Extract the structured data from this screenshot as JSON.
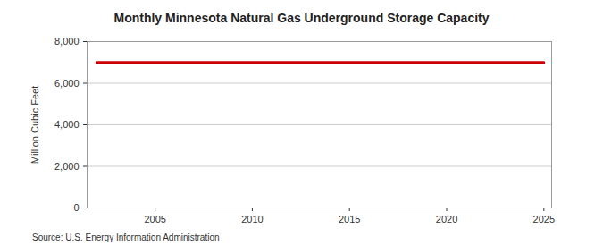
{
  "chart_data": {
    "type": "line",
    "title": "Monthly Minnesota Natural Gas Underground Storage Capacity",
    "y_label": "Million Cubic Feet",
    "source": "Source: U.S. Energy Information Administration",
    "x": [
      2002,
      2003,
      2004,
      2005,
      2006,
      2007,
      2008,
      2009,
      2010,
      2011,
      2012,
      2013,
      2014,
      2015,
      2016,
      2017,
      2018,
      2019,
      2020,
      2021,
      2022,
      2023,
      2024,
      2025
    ],
    "values": [
      7000,
      7000,
      7000,
      7000,
      7000,
      7000,
      7000,
      7000,
      7000,
      7000,
      7000,
      7000,
      7000,
      7000,
      7000,
      7000,
      7000,
      7000,
      7000,
      7000,
      7000,
      7000,
      7000,
      7000
    ],
    "color": "#cc0000",
    "xlim": [
      2001.5,
      2025.4
    ],
    "xticks": [
      2005,
      2010,
      2015,
      2020,
      2025
    ],
    "ylim": [
      0,
      8000
    ],
    "yticks": [
      0,
      {
        "value": 2000,
        "label": "2,000"
      },
      {
        "value": 4000,
        "label": "4,000"
      },
      {
        "value": 6000,
        "label": "6,000"
      },
      {
        "value": 8000,
        "label": "8,000"
      }
    ],
    "grid": true
  }
}
